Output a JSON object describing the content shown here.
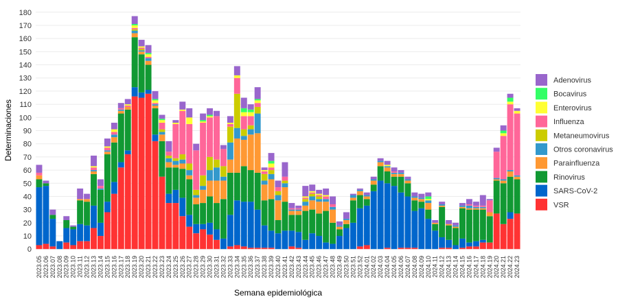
{
  "chart_data": {
    "type": "stacked-bar",
    "y_label": "Determinaciones",
    "x_label": "Semana epidemiológica",
    "categories": [
      "2023.05",
      "2023.06",
      "2023.07",
      "2023.08",
      "2023.09",
      "2023.10",
      "2023.11",
      "2023.12",
      "2023.13",
      "2023.14",
      "2023.15",
      "2023.16",
      "2023.17",
      "2023.18",
      "2023.19",
      "2023.20",
      "2023.21",
      "2023.22",
      "2023.23",
      "2023.24",
      "2023.25",
      "2023.26",
      "2023.27",
      "2023.28",
      "2023.29",
      "2023.30",
      "2023.31",
      "2023.32",
      "2023.33",
      "2023.34",
      "2023.35",
      "2023.36",
      "2023.37",
      "2023.38",
      "2023.39",
      "2023.40",
      "2023.41",
      "2023.42",
      "2023.43",
      "2023.44",
      "2023.45",
      "2023.46",
      "2023.47",
      "2023.48",
      "2023.49",
      "2023.50",
      "2023.51",
      "2023.52",
      "2024.01",
      "2024.02",
      "2024.03",
      "2024.04",
      "2024.05",
      "2024.06",
      "2024.07",
      "2024.08",
      "2024.09",
      "2024.10",
      "2024.11",
      "2024.12",
      "2024.13",
      "2024.14",
      "2024.15",
      "2024.16",
      "2024.17",
      "2024.18",
      "2024.19",
      "2024.20",
      "2024.21",
      "2024.22",
      "2024.23"
    ],
    "series": [
      {
        "name": "Adenovirus",
        "color": "#9966cc",
        "values": [
          6,
          2,
          4,
          0,
          3,
          1,
          8,
          4,
          8,
          5,
          6,
          5,
          4,
          4,
          6,
          5,
          6,
          6,
          3,
          8,
          2,
          6,
          7,
          5,
          5,
          5,
          4,
          3,
          5,
          7,
          8,
          4,
          9,
          2,
          6,
          5,
          11,
          4,
          2,
          8,
          5,
          3,
          5,
          6,
          3,
          5,
          1,
          1,
          2,
          2,
          2,
          3,
          3,
          2,
          2,
          3,
          3,
          3,
          2,
          2,
          3,
          2,
          2,
          4,
          3,
          8,
          1,
          3,
          4,
          3,
          2
        ]
      },
      {
        "name": "Bocavirus",
        "color": "#33ff66",
        "values": [
          0,
          0,
          0,
          0,
          0,
          0,
          0,
          0,
          0,
          0,
          0,
          0,
          0,
          0,
          1,
          0,
          1,
          1,
          1,
          0,
          0,
          0,
          0,
          0,
          1,
          1,
          0,
          0,
          0,
          0,
          3,
          2,
          1,
          0,
          2,
          0,
          0,
          0,
          0,
          0,
          0,
          0,
          0,
          0,
          0,
          0,
          0,
          0,
          0,
          0,
          0,
          0,
          0,
          0,
          0,
          0,
          0,
          2,
          0,
          0,
          0,
          0,
          0,
          0,
          0,
          0,
          0,
          0,
          2,
          3,
          0
        ]
      },
      {
        "name": "Enterovirus",
        "color": "#ffff33",
        "values": [
          0,
          0,
          0,
          0,
          0,
          0,
          0,
          0,
          1,
          0,
          1,
          2,
          0,
          1,
          2,
          1,
          2,
          2,
          2,
          0,
          1,
          1,
          5,
          0,
          1,
          1,
          0,
          0,
          1,
          2,
          3,
          3,
          2,
          1,
          3,
          0,
          0,
          0,
          0,
          1,
          1,
          1,
          1,
          0,
          0,
          0,
          0,
          0,
          0,
          0,
          0,
          1,
          0,
          0,
          0,
          0,
          0,
          1,
          0,
          0,
          0,
          0,
          0,
          0,
          0,
          0,
          0,
          0,
          2,
          2,
          2
        ]
      },
      {
        "name": "Influenza",
        "color": "#ff6699",
        "values": [
          2,
          0,
          0,
          0,
          0,
          0,
          0,
          0,
          2,
          2,
          2,
          2,
          1,
          1,
          1,
          1,
          1,
          1,
          5,
          3,
          26,
          33,
          30,
          30,
          40,
          30,
          33,
          13,
          2,
          12,
          10,
          7,
          3,
          2,
          2,
          3,
          3,
          1,
          1,
          1,
          1,
          1,
          2,
          2,
          0,
          0,
          0,
          0,
          0,
          0,
          0,
          0,
          1,
          0,
          0,
          0,
          0,
          0,
          0,
          0,
          0,
          0,
          0,
          1,
          1,
          1,
          9,
          20,
          33,
          50,
          47
        ]
      },
      {
        "name": "Metaneumovirus",
        "color": "#cccc00",
        "values": [
          0,
          0,
          0,
          0,
          0,
          0,
          0,
          0,
          0,
          0,
          0,
          0,
          0,
          0,
          1,
          1,
          0,
          0,
          2,
          2,
          2,
          4,
          5,
          4,
          8,
          10,
          6,
          8,
          12,
          26,
          5,
          3,
          5,
          5,
          3,
          3,
          2,
          0,
          0,
          2,
          2,
          2,
          0,
          0,
          0,
          0,
          0,
          0,
          0,
          0,
          0,
          0,
          0,
          0,
          0,
          0,
          0,
          0,
          0,
          0,
          0,
          0,
          0,
          0,
          0,
          0,
          0,
          0,
          0,
          0,
          0
        ]
      },
      {
        "name": "Otros coronavirus",
        "color": "#3399cc",
        "values": [
          0,
          0,
          0,
          0,
          0,
          0,
          0,
          0,
          1,
          1,
          1,
          2,
          1,
          0,
          2,
          1,
          2,
          1,
          2,
          3,
          3,
          3,
          4,
          2,
          3,
          8,
          10,
          3,
          13,
          8,
          3,
          4,
          15,
          3,
          4,
          4,
          3,
          1,
          1,
          3,
          3,
          2,
          2,
          2,
          1,
          1,
          2,
          1,
          1,
          1,
          1,
          1,
          1,
          1,
          1,
          1,
          1,
          2,
          0,
          1,
          0,
          1,
          1,
          2,
          1,
          1,
          0,
          1,
          1,
          1,
          1
        ]
      },
      {
        "name": "Parainfluenza",
        "color": "#ff9933",
        "values": [
          3,
          0,
          0,
          0,
          0,
          0,
          1,
          2,
          2,
          0,
          2,
          4,
          2,
          2,
          3,
          2,
          3,
          2,
          5,
          4,
          2,
          4,
          3,
          5,
          10,
          12,
          17,
          14,
          10,
          26,
          20,
          27,
          30,
          12,
          15,
          15,
          11,
          3,
          3,
          4,
          7,
          9,
          7,
          10,
          2,
          3,
          2,
          3,
          2,
          3,
          3,
          3,
          2,
          2,
          2,
          2,
          2,
          5,
          1,
          1,
          1,
          1,
          1,
          1,
          1,
          1,
          3,
          1,
          2,
          4,
          2
        ]
      },
      {
        "name": "Rinovirus",
        "color": "#119933",
        "values": [
          6,
          2,
          3,
          0,
          6,
          2,
          18,
          18,
          24,
          25,
          36,
          30,
          37,
          31,
          38,
          29,
          19,
          20,
          27,
          20,
          17,
          22,
          27,
          15,
          16,
          20,
          20,
          30,
          32,
          21,
          27,
          24,
          28,
          19,
          24,
          10,
          22,
          12,
          13,
          22,
          18,
          17,
          24,
          16,
          5,
          3,
          17,
          10,
          5,
          5,
          11,
          9,
          7,
          12,
          10,
          8,
          5,
          7,
          5,
          23,
          11,
          13,
          23,
          25,
          24,
          23,
          20,
          25,
          31,
          27,
          26
        ]
      },
      {
        "name": "SARS-CoV-2",
        "color": "#0066cc",
        "values": [
          44,
          44,
          21,
          6,
          11,
          12,
          13,
          12,
          17,
          10,
          8,
          9,
          4,
          3,
          7,
          4,
          3,
          5,
          0,
          7,
          10,
          14,
          9,
          7,
          4,
          9,
          8,
          8,
          24,
          34,
          34,
          35,
          29,
          17,
          13,
          12,
          14,
          12,
          12,
          7,
          12,
          10,
          5,
          4,
          10,
          16,
          20,
          29,
          30,
          44,
          52,
          49,
          48,
          42,
          39,
          28,
          31,
          23,
          14,
          8,
          6,
          3,
          7,
          3,
          4,
          2,
          0,
          0,
          0,
          5,
          0
        ]
      },
      {
        "name": "VSR",
        "color": "#ff3333",
        "values": [
          3,
          4,
          2,
          0,
          5,
          3,
          6,
          6,
          16,
          10,
          28,
          42,
          62,
          72,
          116,
          115,
          118,
          82,
          55,
          35,
          35,
          25,
          17,
          12,
          15,
          11,
          7,
          0,
          2,
          3,
          2,
          1,
          1,
          1,
          1,
          0,
          0,
          2,
          1,
          0,
          0,
          0,
          0,
          0,
          0,
          0,
          0,
          2,
          3,
          0,
          0,
          1,
          0,
          1,
          1,
          1,
          0,
          0,
          0,
          1,
          1,
          0,
          1,
          2,
          2,
          5,
          5,
          27,
          19,
          23,
          27
        ]
      }
    ],
    "ylim": [
      -3,
      183
    ],
    "yticks": [
      0,
      10,
      20,
      30,
      40,
      50,
      60,
      70,
      80,
      90,
      100,
      110,
      120,
      130,
      140,
      150,
      160,
      170,
      180
    ],
    "grid": true,
    "legend": "right"
  }
}
